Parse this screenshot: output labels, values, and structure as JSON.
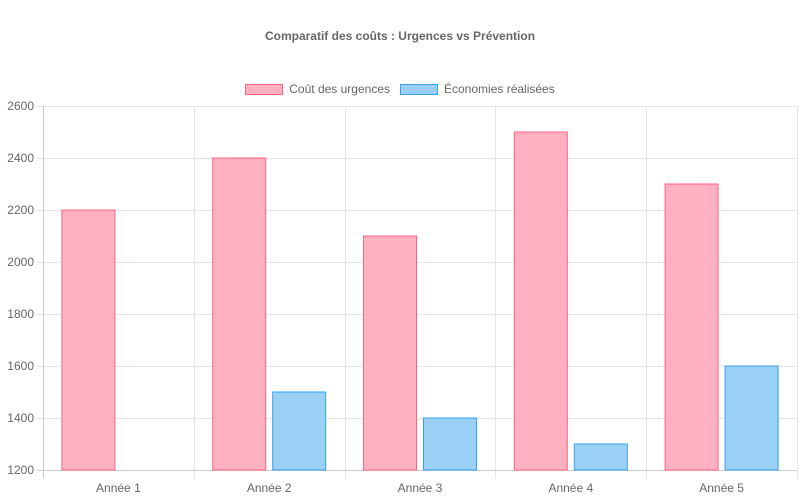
{
  "chart_data": {
    "type": "bar",
    "title": "Comparatif des coûts : Urgences vs Prévention",
    "categories": [
      "Année 1",
      "Année 2",
      "Année 3",
      "Année 4",
      "Année 5"
    ],
    "series": [
      {
        "name": "Coût des urgences",
        "values": [
          2200,
          2400,
          2100,
          2500,
          2300
        ],
        "fill": "#ffb1c1",
        "border": "#ff6384"
      },
      {
        "name": "Économies réalisées",
        "values": [
          1200,
          1500,
          1400,
          1300,
          1600
        ],
        "fill": "#9ad0f5",
        "border": "#36a2eb"
      }
    ],
    "xlabel": "",
    "ylabel": "",
    "ylim": [
      1200,
      2600
    ],
    "yticks": [
      1200,
      1400,
      1600,
      1800,
      2000,
      2200,
      2400,
      2600
    ],
    "grid": true,
    "legend_position": "top"
  },
  "legend": {
    "item0": "Coût des urgences",
    "item1": "Économies réalisées"
  }
}
